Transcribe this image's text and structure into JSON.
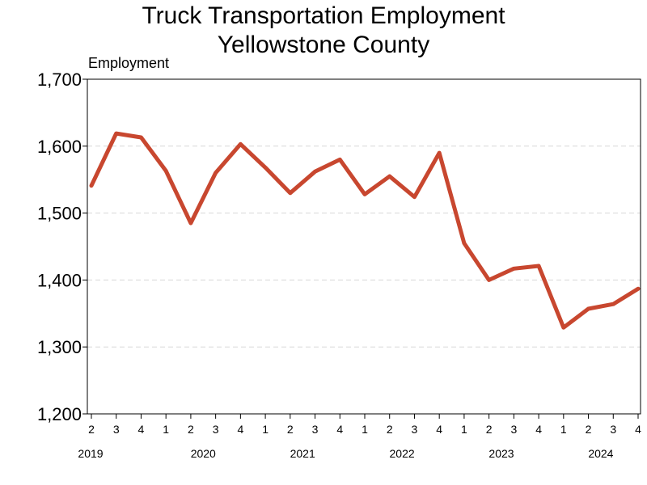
{
  "chart_data": {
    "type": "line",
    "title": "Truck Transportation Employment",
    "subtitle": "Yellowstone County",
    "ylabel": "Employment",
    "xlabel": "",
    "ylim": [
      1200,
      1700
    ],
    "yticks": [
      "1,200",
      "1,300",
      "1,400",
      "1,500",
      "1,600",
      "1,700"
    ],
    "grid": true,
    "quarters": [
      "2",
      "3",
      "4",
      "1",
      "2",
      "3",
      "4",
      "1",
      "2",
      "3",
      "4",
      "1",
      "2",
      "3",
      "4",
      "1",
      "2",
      "3",
      "4",
      "1",
      "2",
      "3",
      "4"
    ],
    "years": [
      {
        "label": "2019",
        "start_index": 0
      },
      {
        "label": "2020",
        "start_index": 3
      },
      {
        "label": "2021",
        "start_index": 7
      },
      {
        "label": "2022",
        "start_index": 11
      },
      {
        "label": "2023",
        "start_index": 15
      },
      {
        "label": "2024",
        "start_index": 19
      }
    ],
    "series": [
      {
        "color": "#c8472f",
        "values": [
          1541,
          1619,
          1613,
          1563,
          1485,
          1560,
          1603,
          1568,
          1530,
          1562,
          1580,
          1528,
          1555,
          1524,
          1590,
          1455,
          1400,
          1417,
          1421,
          1329,
          1357,
          1364,
          1387
        ]
      }
    ]
  }
}
